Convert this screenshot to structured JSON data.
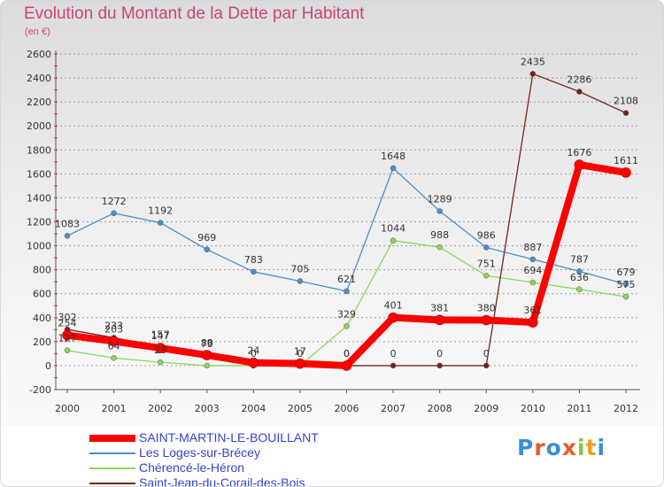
{
  "header": {
    "title": "Evolution du Montant de la Dette par Habitant",
    "subtitle": "(en €)"
  },
  "logo": {
    "text": "Proxiti",
    "letter_colors": [
      "#3a8fd6",
      "#e85a2a",
      "#3a8fd6",
      "#e85a2a",
      "#8bc34a",
      "#e8a21a",
      "#3a8fd6"
    ]
  },
  "chart_data": {
    "type": "line",
    "title": "Evolution du Montant de la Dette par Habitant",
    "subtitle": "(en €)",
    "xlabel": "",
    "ylabel": "",
    "ylim": [
      -200,
      2600
    ],
    "yticks": [
      -200,
      0,
      200,
      400,
      600,
      800,
      1000,
      1200,
      1400,
      1600,
      1800,
      2000,
      2200,
      2400,
      2600
    ],
    "categories": [
      "2000",
      "2001",
      "2002",
      "2003",
      "2004",
      "2005",
      "2006",
      "2007",
      "2008",
      "2009",
      "2010",
      "2011",
      "2012"
    ],
    "grid": "horizontal dashed",
    "legend_position": "bottom-left",
    "series": [
      {
        "name": "SAINT-MARTIN-LE-BOUILLANT",
        "color": "#ff0000",
        "emphasis": "thick",
        "values": [
          254,
          203,
          147,
          88,
          24,
          17,
          0,
          401,
          381,
          380,
          361,
          1676,
          1611
        ],
        "labels": [
          "254",
          "203",
          "147",
          "88",
          "24",
          "17",
          "0",
          "401",
          "381",
          "380",
          "361",
          "1676",
          "1611"
        ]
      },
      {
        "name": "Les Loges-sur-Brécey",
        "color": "#4a8fcc",
        "values": [
          1083,
          1272,
          1192,
          969,
          783,
          705,
          621,
          1648,
          1289,
          986,
          887,
          787,
          679
        ],
        "labels": [
          "1083",
          "1272",
          "1192",
          "969",
          "783",
          "705",
          "621",
          "1648",
          "1289",
          "986",
          "887",
          "787",
          "679"
        ]
      },
      {
        "name": "Chérencé-le-Héron",
        "color": "#8fd65a",
        "values": [
          127,
          64,
          28,
          0,
          0,
          0,
          329,
          1044,
          988,
          751,
          694,
          636,
          575
        ],
        "labels": [
          "127",
          "64",
          "28",
          "",
          "",
          "",
          "329",
          "1044",
          "988",
          "751",
          "694",
          "636",
          "575"
        ]
      },
      {
        "name": "Saint-Jean-du-Corail-des-Bois",
        "color": "#7a2020",
        "values": [
          302,
          233,
          157,
          79,
          0,
          0,
          0,
          0,
          0,
          0,
          2435,
          2286,
          2108
        ],
        "labels": [
          "302",
          "233",
          "157",
          "79",
          "0",
          "0",
          "0",
          "0",
          "0",
          "0",
          "2435",
          "2286",
          "2108"
        ]
      }
    ]
  }
}
